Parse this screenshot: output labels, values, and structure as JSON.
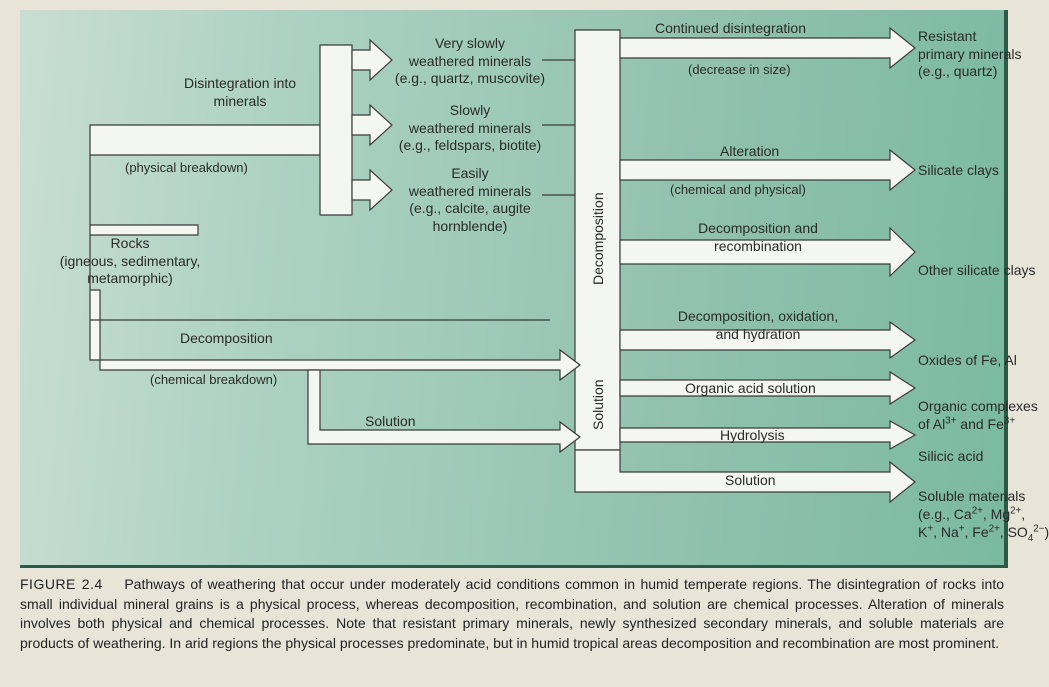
{
  "diagram": {
    "type": "flowchart",
    "background_gradient": [
      "#c9ded2",
      "#add2c3",
      "#8fc1ad",
      "#7bb9a3"
    ],
    "arrow_fill": "#f4f6f2",
    "arrow_stroke": "#3a3a3a",
    "arrow_stroke_width": 1.2,
    "text_color": "#2a2a2a",
    "font_family": "Helvetica",
    "nodes": {
      "rocks": "Rocks\n(igneous, sedimentary,\nmetamorphic)",
      "disint_label": "Disintegration into\nminerals",
      "phys_breakdown": "(physical breakdown)",
      "very_slow": "Very slowly\nweathered minerals\n(e.g., quartz, muscovite)",
      "slow": "Slowly\nweathered minerals\n(e.g., feldspars, biotite)",
      "easy": "Easily\nweathered minerals\n(e.g., calcite, augite\nhornblende)",
      "decomp1": "Decomposition",
      "chem_breakdown": "(chemical breakdown)",
      "solution1": "Solution",
      "vlabel_decomp": "Decomposition",
      "vlabel_sol": "Solution",
      "cont_disint": "Continued disintegration",
      "decr_size": "(decrease in size)",
      "resistant": "Resistant\nprimary minerals\n(e.g., quartz)",
      "alteration": "Alteration",
      "chem_phys": "(chemical and physical)",
      "silicate_clays": "Silicate clays",
      "decomp_recomb": "Decomposition and\nrecombination",
      "other_silicate": "Other silicate clays",
      "decomp_ox_hyd": "Decomposition, oxidation,\nand hydration",
      "oxides": "Oxides of Fe, Al",
      "org_acid": "Organic acid solution",
      "org_complex": "Organic complexes\nof Al³⁺ and Fe³⁺",
      "hydrolysis": "Hydrolysis",
      "silicic": "Silicic acid",
      "solution2": "Solution",
      "soluble": "Soluble materials\n(e.g., Ca²⁺, Mg²⁺,\nK⁺, Na⁺, Fe²⁺, SO₄²⁻)"
    }
  },
  "caption": {
    "label": "FIGURE 2.4",
    "text": "Pathways of weathering that occur under moderately acid conditions common in humid temperate regions. The disintegration of rocks into small individual mineral grains is a physical process, whereas decomposition, recombination, and solution are chemical processes. Alteration of minerals involves both physical and chemical processes. Note that resistant primary minerals, newly synthesized secondary minerals, and soluble materials are products of weathering. In arid regions the physical processes predominate, but in humid tropical areas decomposition and recombination are most prominent."
  }
}
